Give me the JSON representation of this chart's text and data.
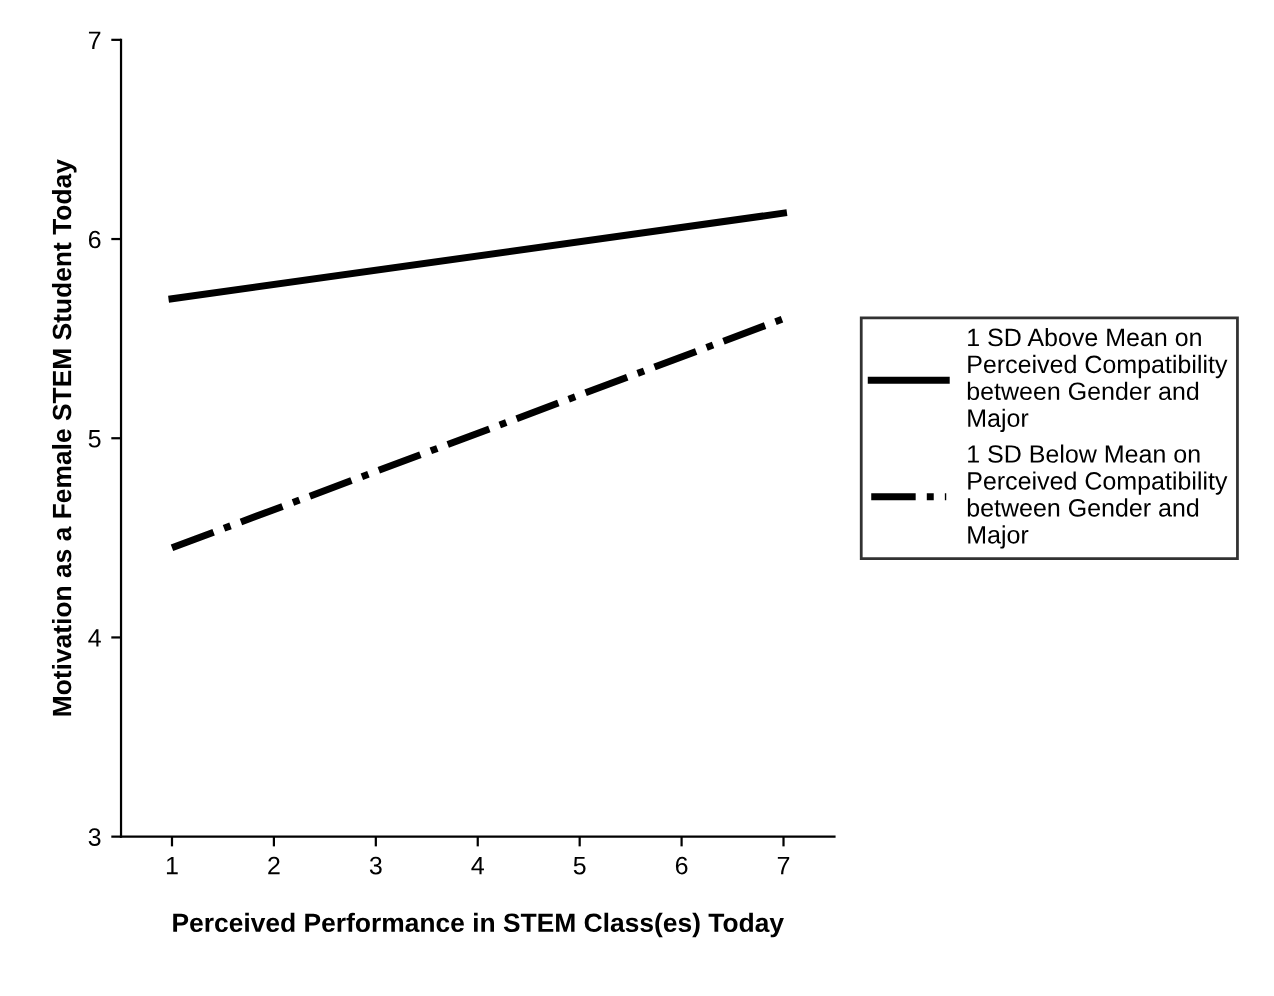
{
  "chart_data": {
    "type": "line",
    "xlabel": "Perceived Performance in STEM Class(es) Today",
    "ylabel": "Motivation as a Female STEM Student Today",
    "categories": [
      "1",
      "2",
      "3",
      "4",
      "5",
      "6",
      "7"
    ],
    "series": [
      {
        "name": "1 SD Above Mean on\nPerceived Compatibility\nbetween Gender and\nMajor",
        "color": "#000000",
        "line_style": "solid",
        "values": [
          5.7,
          null,
          null,
          null,
          null,
          null,
          6.13
        ]
      },
      {
        "name": "1 SD Below Mean on\nPerceived Compatibility\nbetween Gender and\nMajor",
        "color": "#000000",
        "line_style": "dashdot",
        "values": [
          4.45,
          null,
          null,
          null,
          null,
          null,
          5.6
        ]
      }
    ],
    "ylim": [
      3,
      7
    ],
    "yticks": [
      3,
      4,
      5,
      6,
      7
    ],
    "grid": false,
    "legend": "right",
    "marker": "none"
  }
}
